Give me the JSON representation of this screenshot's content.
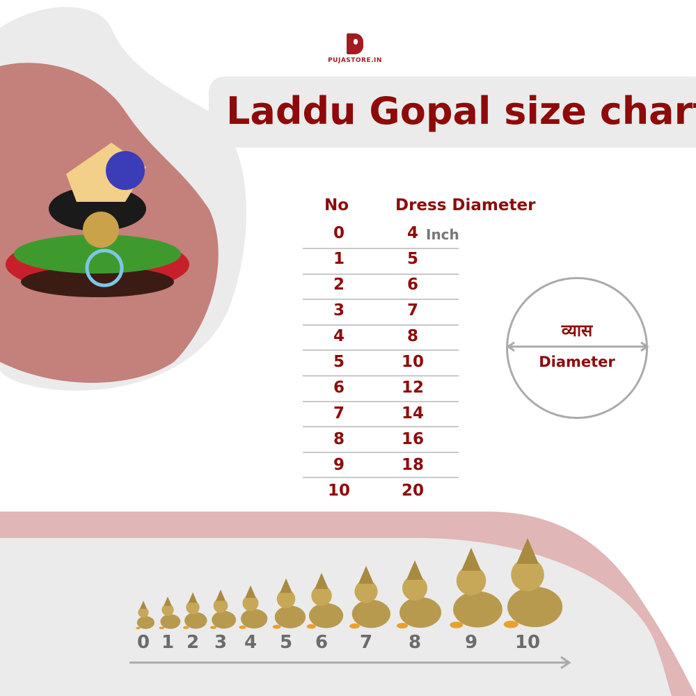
{
  "brand": {
    "name": "PUJASTORE.IN",
    "color": "#a31c22"
  },
  "title": "Laddu Gopal size chart",
  "table": {
    "headers": [
      "No",
      "Dress Diameter"
    ],
    "unit": "Inch",
    "rows": [
      {
        "no": "0",
        "diameter": "4"
      },
      {
        "no": "1",
        "diameter": "5"
      },
      {
        "no": "2",
        "diameter": "6"
      },
      {
        "no": "3",
        "diameter": "7"
      },
      {
        "no": "4",
        "diameter": "8"
      },
      {
        "no": "5",
        "diameter": "10"
      },
      {
        "no": "6",
        "diameter": "12"
      },
      {
        "no": "7",
        "diameter": "14"
      },
      {
        "no": "8",
        "diameter": "16"
      },
      {
        "no": "9",
        "diameter": "18"
      },
      {
        "no": "10",
        "diameter": "20"
      }
    ]
  },
  "diagram": {
    "hindi_label": "व्यास",
    "english_label": "Diameter"
  },
  "size_scale": [
    "0",
    "1",
    "2",
    "3",
    "4",
    "5",
    "6",
    "7",
    "8",
    "9",
    "10"
  ],
  "colors": {
    "text": "#8e0a0a",
    "pink": "#c4807a",
    "light_pink": "#e0b6b6",
    "grey": "#ebebeb"
  }
}
